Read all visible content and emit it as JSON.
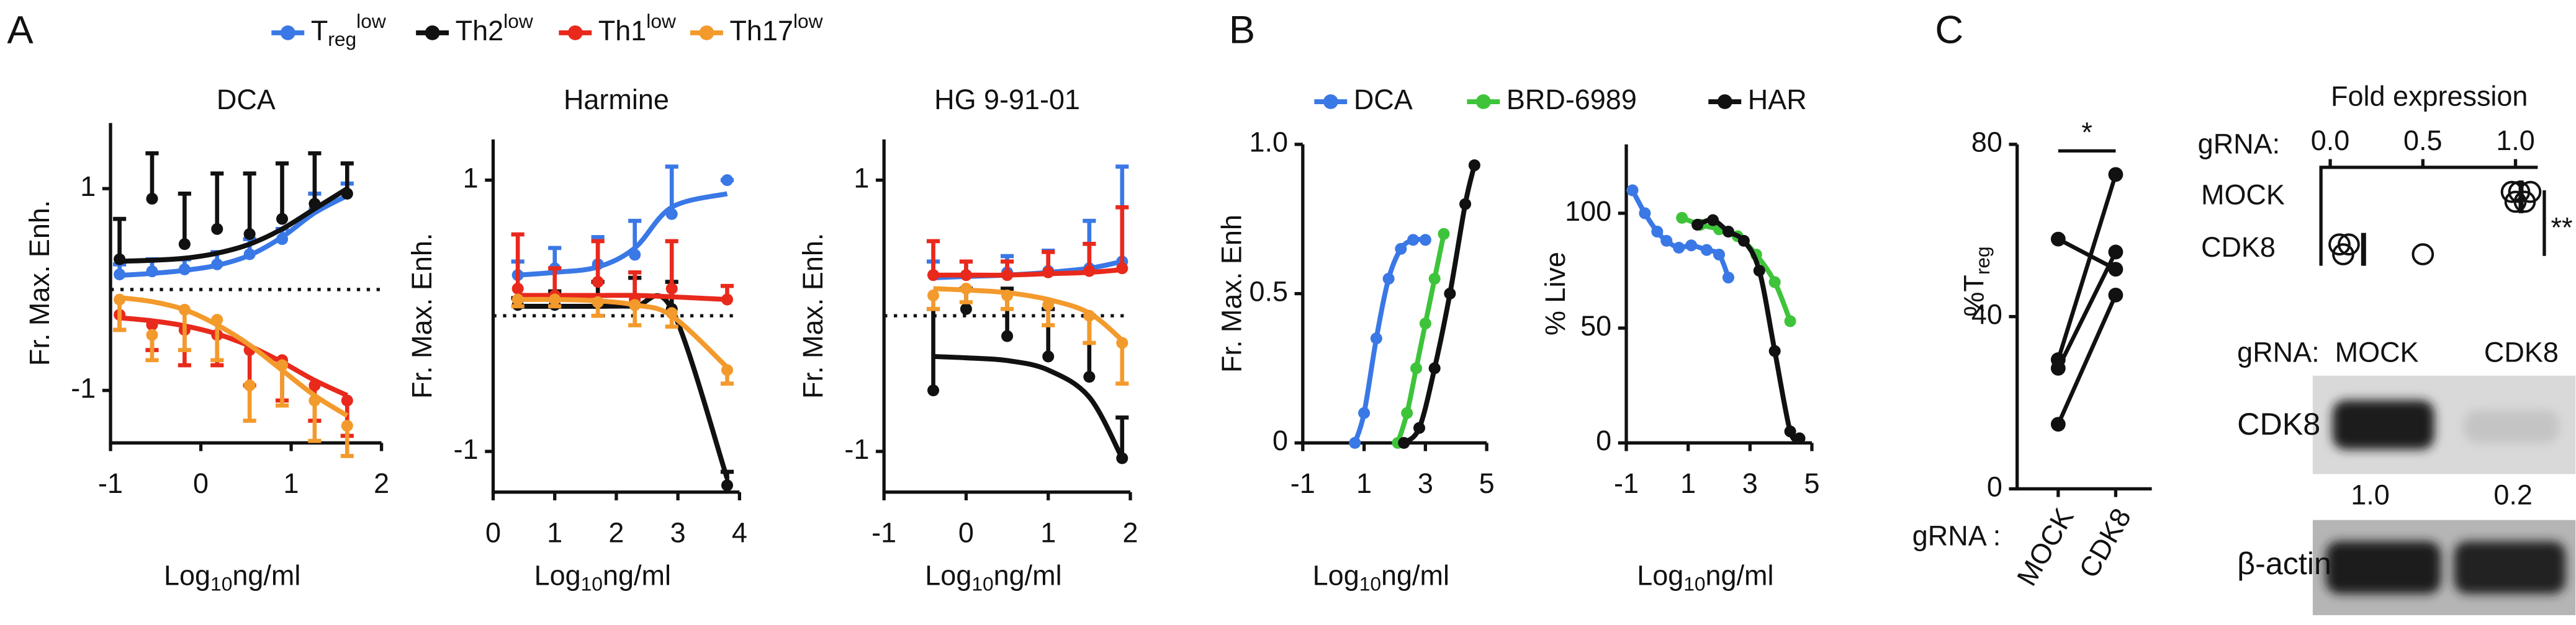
{
  "panel_labels": [
    "A",
    "B",
    "C"
  ],
  "chart_data": [
    {
      "type": "line",
      "title": "DCA",
      "xlabel": [
        "Log",
        "10",
        "ng/ml"
      ],
      "ylabel": "Fr. Max. Enh.",
      "xlim": [
        -1,
        2
      ],
      "ylim": [
        -1.52,
        1.65
      ],
      "xticks": [
        -1,
        0,
        1,
        2
      ],
      "yticks": [
        -1,
        1
      ],
      "zero_line": true,
      "legend": "top",
      "series": [
        {
          "name": "T",
          "name_sub": "reg",
          "name_sup": "low",
          "color": "#3a78e6",
          "error_dir": "up",
          "x": [
            -0.9,
            -0.54,
            -0.18,
            0.18,
            0.54,
            0.9,
            1.26,
            1.62
          ],
          "values": [
            0.15,
            0.18,
            0.2,
            0.25,
            0.35,
            0.5,
            0.8,
            0.95
          ],
          "errors": [
            0.1,
            0.12,
            0.1,
            0.12,
            0.15,
            0.1,
            0.15,
            0.1
          ],
          "fit": [
            0.14,
            0.16,
            0.19,
            0.24,
            0.34,
            0.52,
            0.76,
            0.93
          ]
        },
        {
          "name": "Th2",
          "name_sup": "low",
          "color": "#111111",
          "error_dir": "up",
          "x": [
            -0.9,
            -0.54,
            -0.18,
            0.18,
            0.54,
            0.9,
            1.26,
            1.62
          ],
          "values": [
            0.3,
            0.9,
            0.45,
            0.6,
            0.55,
            0.7,
            0.85,
            0.95
          ],
          "errors": [
            0.4,
            0.45,
            0.5,
            0.55,
            0.6,
            0.55,
            0.5,
            0.3
          ],
          "fit": [
            0.28,
            0.29,
            0.31,
            0.36,
            0.45,
            0.6,
            0.8,
            1.0
          ]
        },
        {
          "name": "Th1",
          "name_sup": "low",
          "color": "#e8291c",
          "error_dir": "down",
          "x": [
            -0.9,
            -0.54,
            -0.18,
            0.18,
            0.54,
            0.9,
            1.26,
            1.62
          ],
          "values": [
            -0.25,
            -0.35,
            -0.4,
            -0.45,
            -0.6,
            -0.7,
            -0.95,
            -1.1
          ],
          "errors": [
            0.15,
            0.25,
            0.35,
            0.3,
            0.35,
            0.4,
            0.35,
            0.35
          ],
          "fit": [
            -0.28,
            -0.31,
            -0.36,
            -0.44,
            -0.56,
            -0.72,
            -0.9,
            -1.05
          ]
        },
        {
          "name": "Th17",
          "name_sup": "low",
          "color": "#f39a2c",
          "error_dir": "down",
          "x": [
            -0.9,
            -0.54,
            -0.18,
            0.18,
            0.54,
            0.9,
            1.26,
            1.62
          ],
          "values": [
            -0.1,
            -0.45,
            -0.2,
            -0.3,
            -0.95,
            -0.75,
            -1.1,
            -1.35
          ],
          "errors": [
            0.3,
            0.25,
            0.4,
            0.4,
            0.35,
            0.4,
            0.4,
            0.3
          ],
          "fit": [
            -0.08,
            -0.12,
            -0.2,
            -0.35,
            -0.55,
            -0.8,
            -1.05,
            -1.25
          ]
        }
      ]
    },
    {
      "type": "line",
      "title": "Harmine",
      "xlabel": [
        "Log",
        "10",
        "ng/ml"
      ],
      "ylabel": "Fr. Max. Enh.",
      "xlim": [
        0,
        4
      ],
      "ylim": [
        -1.3,
        1.3
      ],
      "xticks": [
        0,
        1,
        2,
        3,
        4
      ],
      "yticks": [
        -1,
        1
      ],
      "zero_line": true,
      "series": [
        {
          "color": "#3a78e6",
          "error_dir": "up",
          "x": [
            0.4,
            1.0,
            1.7,
            2.3,
            2.9,
            3.8
          ],
          "values": [
            0.3,
            0.35,
            0.38,
            0.45,
            0.75,
            1.0
          ],
          "errors": [
            0.1,
            0.15,
            0.2,
            0.25,
            0.35,
            0
          ],
          "fit": [
            0.3,
            0.32,
            0.36,
            0.5,
            0.8,
            0.9
          ]
        },
        {
          "color": "#111111",
          "error_dir": "up",
          "x": [
            0.4,
            1.0,
            1.7,
            2.3,
            2.9,
            3.8
          ],
          "values": [
            0.08,
            0.08,
            0.1,
            0.08,
            0.05,
            -1.25
          ],
          "errors": [
            0.05,
            0.1,
            0.15,
            0.2,
            0.2,
            0.1
          ],
          "fit": [
            0.07,
            0.07,
            0.07,
            0.07,
            0.05,
            -1.2
          ]
        },
        {
          "color": "#e8291c",
          "error_dir": "up",
          "x": [
            0.4,
            1.0,
            1.7,
            2.3,
            2.9,
            3.8
          ],
          "values": [
            0.2,
            0.15,
            0.25,
            0.12,
            0.2,
            0.12
          ],
          "errors": [
            0.4,
            0.2,
            0.3,
            0.2,
            0.35,
            0.1
          ],
          "fit": [
            0.15,
            0.15,
            0.15,
            0.15,
            0.14,
            0.12
          ]
        },
        {
          "color": "#f39a2c",
          "error_dir": "down",
          "x": [
            0.4,
            1.0,
            1.7,
            2.3,
            2.9,
            3.8
          ],
          "values": [
            0.12,
            0.12,
            0.1,
            0.08,
            0.02,
            -0.4
          ],
          "errors": [
            0.05,
            0.05,
            0.1,
            0.15,
            0.1,
            0.1
          ],
          "fit": [
            0.12,
            0.12,
            0.11,
            0.08,
            0.0,
            -0.38
          ]
        }
      ]
    },
    {
      "type": "line",
      "title": "HG 9-91-01",
      "xlabel": [
        "Log",
        "10",
        "ng/ml"
      ],
      "ylabel": "Fr. Max. Enh.",
      "xlim": [
        -1,
        2
      ],
      "ylim": [
        -1.3,
        1.3
      ],
      "xticks": [
        -1,
        0,
        1,
        2
      ],
      "yticks": [
        -1,
        1
      ],
      "zero_line": true,
      "series": [
        {
          "color": "#3a78e6",
          "error_dir": "up",
          "x": [
            -0.4,
            0,
            0.5,
            1,
            1.5,
            1.9
          ],
          "values": [
            0.3,
            0.3,
            0.32,
            0.33,
            0.35,
            0.4
          ],
          "errors": [
            0.1,
            0.1,
            0.12,
            0.15,
            0.35,
            0.7
          ],
          "fit": [
            0.28,
            0.29,
            0.3,
            0.32,
            0.35,
            0.4
          ]
        },
        {
          "color": "#e8291c",
          "error_dir": "up",
          "x": [
            -0.4,
            0,
            0.5,
            1,
            1.5,
            1.9
          ],
          "values": [
            0.3,
            0.3,
            0.3,
            0.32,
            0.33,
            0.35
          ],
          "errors": [
            0.25,
            0.1,
            0.1,
            0.15,
            0.2,
            0.45
          ],
          "fit": [
            0.3,
            0.3,
            0.3,
            0.31,
            0.32,
            0.34
          ]
        },
        {
          "color": "#111111",
          "error_dir": "up",
          "x": [
            -0.4,
            0,
            0.5,
            1,
            1.5,
            1.9
          ],
          "values": [
            -0.55,
            0.05,
            -0.15,
            -0.3,
            -0.45,
            -1.05
          ],
          "errors": [
            0.6,
            0.15,
            0.35,
            0.35,
            0.45,
            0.3
          ],
          "fit": [
            -0.3,
            -0.31,
            -0.33,
            -0.4,
            -0.6,
            -1.05
          ]
        },
        {
          "color": "#f39a2c",
          "error_dir": "down",
          "x": [
            -0.4,
            0,
            0.5,
            1,
            1.5,
            1.9
          ],
          "values": [
            0.15,
            0.2,
            0.15,
            0.08,
            0.0,
            -0.2
          ],
          "errors": [
            0.1,
            0.1,
            0.1,
            0.15,
            0.2,
            0.3
          ],
          "fit": [
            0.2,
            0.19,
            0.17,
            0.12,
            0.02,
            -0.18
          ]
        }
      ]
    },
    {
      "type": "line",
      "xlabel": [
        "Log",
        "10",
        "ng/ml"
      ],
      "ylabel": "Fr. Max. Enh",
      "legend": "top",
      "xlim": [
        -1,
        5
      ],
      "ylim": [
        0,
        1
      ],
      "xticks": [
        -1,
        1,
        3,
        5
      ],
      "yticks": [
        0,
        0.5,
        {
          "value": 1,
          "label": "1.0"
        }
      ],
      "series": [
        {
          "name": "DCA",
          "color": "#3a78e6",
          "x": [
            0.7,
            1.0,
            1.4,
            1.8,
            2.2,
            2.6,
            3.0
          ],
          "values": [
            0,
            0.1,
            0.35,
            0.55,
            0.65,
            0.68,
            0.68
          ]
        },
        {
          "name": "BRD-6989",
          "color": "#3ec43a",
          "x": [
            2.1,
            2.4,
            2.7,
            3.0,
            3.3,
            3.6
          ],
          "values": [
            0,
            0.1,
            0.25,
            0.4,
            0.55,
            0.7
          ]
        },
        {
          "name": "HAR",
          "color": "#111111",
          "x": [
            2.3,
            2.8,
            3.3,
            3.8,
            4.3,
            4.6
          ],
          "values": [
            0,
            0.05,
            0.25,
            0.5,
            0.8,
            0.93
          ]
        }
      ]
    },
    {
      "type": "line",
      "xlabel": [
        "Log",
        "10",
        "ng/ml"
      ],
      "ylabel": "% Live",
      "xlim": [
        -1,
        5
      ],
      "ylim": [
        0,
        130
      ],
      "xticks": [
        -1,
        1,
        3,
        5
      ],
      "yticks": [
        0,
        50,
        100
      ],
      "series": [
        {
          "color": "#3a78e6",
          "x": [
            -0.8,
            -0.4,
            0,
            0.3,
            0.7,
            1.1,
            1.6,
            2.0,
            2.3
          ],
          "values": [
            110,
            100,
            92,
            88,
            85,
            86,
            84,
            82,
            72
          ]
        },
        {
          "color": "#3ec43a",
          "x": [
            0.8,
            1.4,
            2.0,
            2.6,
            3.2,
            3.8,
            4.3
          ],
          "values": [
            98,
            95,
            93,
            90,
            82,
            70,
            53
          ]
        },
        {
          "color": "#111111",
          "x": [
            1.3,
            1.8,
            2.3,
            2.8,
            3.3,
            3.8,
            4.3,
            4.6
          ],
          "values": [
            95,
            97,
            92,
            88,
            75,
            40,
            5,
            2
          ]
        }
      ]
    },
    {
      "type": "paired",
      "ylabel": [
        "%T",
        "reg"
      ],
      "category_label": "gRNA :",
      "categories": [
        "MOCK",
        "CDK8"
      ],
      "ylim": [
        0,
        80
      ],
      "yticks": [
        0,
        40,
        80
      ],
      "color": "#111111",
      "annotation": "*",
      "series": [
        {
          "values": [
            58,
            51
          ]
        },
        {
          "values": [
            30,
            73
          ]
        },
        {
          "values": [
            28,
            55
          ]
        },
        {
          "values": [
            15,
            45
          ]
        }
      ]
    },
    {
      "type": "dot",
      "title": "Fold expression",
      "category_label": "gRNA:",
      "categories": [
        "MOCK",
        "CDK8"
      ],
      "xlim": [
        -0.05,
        1.12
      ],
      "xticks": [
        {
          "value": 0,
          "label": "0.0"
        },
        0.5,
        {
          "value": 1,
          "label": "1.0"
        }
      ],
      "values": [
        [
          0.98,
          1.0,
          1.02,
          1.05,
          1.08
        ],
        [
          0.05,
          0.07,
          0.1,
          0.5
        ]
      ],
      "means": [
        1.03,
        0.18
      ],
      "annotation": "**"
    }
  ],
  "blot": {
    "header_label": "gRNA:",
    "lanes": [
      "MOCK",
      "CDK8"
    ],
    "rows": [
      {
        "label": "CDK8",
        "quant": [
          "1.0",
          "0.2"
        ]
      },
      {
        "label": "β-actin"
      }
    ]
  }
}
